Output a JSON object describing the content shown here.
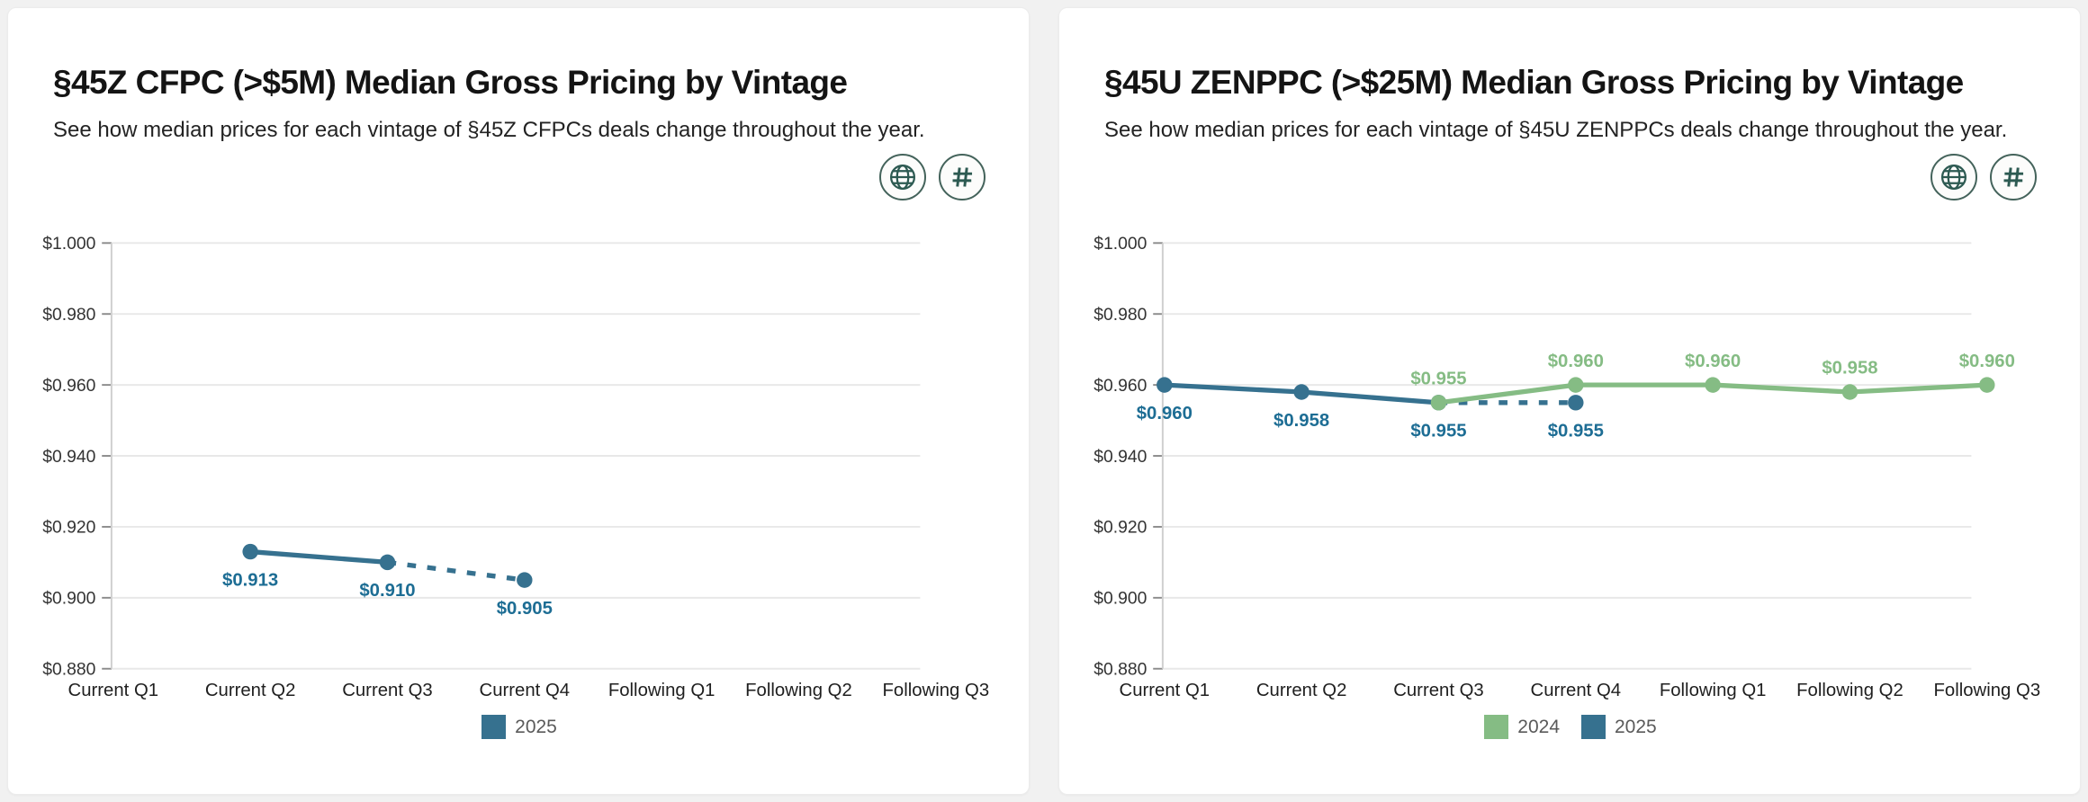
{
  "page": {
    "background": "#f1f1f1",
    "accent_teal": "#2d5a52"
  },
  "cards": [
    {
      "title": "§45Z CFPC (>$5M) Median Gross Pricing by Vintage",
      "subtitle": "See how median prices for each vintage of §45Z CFPCs deals change throughout the year.",
      "actions": [
        {
          "icon": "globe-icon"
        },
        {
          "icon": "hash-icon"
        }
      ]
    },
    {
      "title": "§45U ZENPPC (>$25M) Median Gross Pricing by Vintage",
      "subtitle": "See how median prices for each vintage of §45U ZENPPCs deals change throughout the year.",
      "actions": [
        {
          "icon": "globe-icon"
        },
        {
          "icon": "hash-icon"
        }
      ]
    }
  ],
  "chart_data": [
    {
      "type": "line",
      "title": "§45Z CFPC (>$5M) Median Gross Pricing by Vintage",
      "categories": [
        "Current Q1",
        "Current Q2",
        "Current Q3",
        "Current Q4",
        "Following Q1",
        "Following Q2",
        "Following Q3"
      ],
      "ylim": [
        0.88,
        1.0
      ],
      "grid": true,
      "legend_position": "bottom",
      "y_ticks": [
        {
          "value": 1.0,
          "label": "$1.000"
        },
        {
          "value": 0.98,
          "label": "$0.980"
        },
        {
          "value": 0.96,
          "label": "$0.960"
        },
        {
          "value": 0.94,
          "label": "$0.940"
        },
        {
          "value": 0.92,
          "label": "$0.920"
        },
        {
          "value": 0.9,
          "label": "$0.900"
        },
        {
          "value": 0.88,
          "label": "$0.880"
        }
      ],
      "series": [
        {
          "name": "2025",
          "color": "#36718f",
          "label_color": "#1d6d94",
          "values": [
            null,
            0.913,
            0.91,
            0.905,
            null,
            null,
            null
          ],
          "point_labels": [
            null,
            "$0.913",
            "$0.910",
            "$0.905",
            null,
            null,
            null
          ],
          "label_position": "below",
          "dashed_last_segment": true
        }
      ],
      "legend": [
        {
          "label": "2025",
          "color": "#36718f"
        }
      ]
    },
    {
      "type": "line",
      "title": "§45U ZENPPC (>$25M) Median Gross Pricing by Vintage",
      "categories": [
        "Current Q1",
        "Current Q2",
        "Current Q3",
        "Current Q4",
        "Following Q1",
        "Following Q2",
        "Following Q3"
      ],
      "ylim": [
        0.88,
        1.0
      ],
      "grid": true,
      "legend_position": "bottom",
      "y_ticks": [
        {
          "value": 1.0,
          "label": "$1.000"
        },
        {
          "value": 0.98,
          "label": "$0.980"
        },
        {
          "value": 0.96,
          "label": "$0.960"
        },
        {
          "value": 0.94,
          "label": "$0.940"
        },
        {
          "value": 0.92,
          "label": "$0.920"
        },
        {
          "value": 0.9,
          "label": "$0.900"
        },
        {
          "value": 0.88,
          "label": "$0.880"
        }
      ],
      "series": [
        {
          "name": "2024",
          "color": "#85bc84",
          "values": [
            null,
            null,
            0.955,
            0.96,
            0.96,
            0.958,
            0.96
          ],
          "point_labels": [
            null,
            null,
            "$0.955",
            "$0.960",
            "$0.960",
            "$0.958",
            "$0.960"
          ],
          "label_position": "above",
          "dashed_last_segment": false
        },
        {
          "name": "2025",
          "color": "#36718f",
          "label_color": "#1d6d94",
          "values": [
            0.96,
            0.958,
            0.955,
            0.955,
            null,
            null,
            null
          ],
          "point_labels": [
            "$0.960",
            "$0.958",
            "$0.955",
            "$0.955",
            null,
            null,
            null
          ],
          "label_position": "below",
          "dashed_last_segment": true
        }
      ],
      "legend": [
        {
          "label": "2024",
          "color": "#85bc84"
        },
        {
          "label": "2025",
          "color": "#36718f"
        }
      ]
    }
  ]
}
